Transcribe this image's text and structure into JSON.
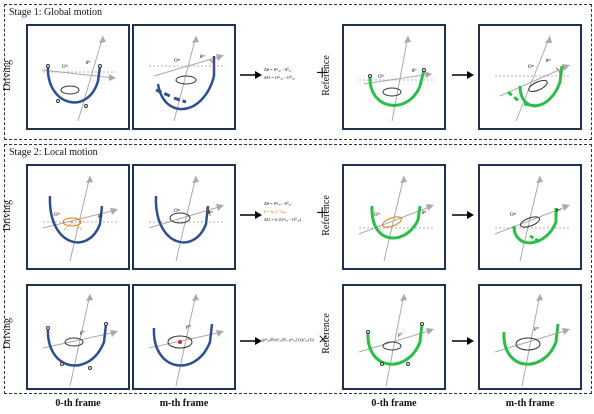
{
  "stage1": {
    "title": "Stage 1: Global motion"
  },
  "stage2": {
    "title": "Stage 2: Local motion"
  },
  "labels": {
    "driving": "Driving",
    "reference": "Reference"
  },
  "formulas": {
    "s1_line1": "Δθ = θᵐ₂ₒ - θ⁰₂ₒ",
    "s1_line2": "ΔO = Oᵐ₂ₒ - O⁰₂ₒ",
    "s2_line1": "Δθ = θᵐₒᵥ - θ⁰ₒᵥ",
    "s2_line2": "b = bᵣₑf / bₚᵣₑ",
    "s2_line3": "ΔO = b·(Oᵐₒᵥ - O⁰ₒᵥ)",
    "s3_matrix": "(pᵐ₀ₒ(0)/p⁰₀ₒ(0) , pᵐ₀ₒ(1)/p⁰₀ₒ(1))"
  },
  "annotations": {
    "theta0": "θ⁰",
    "thetam": "θᵐ",
    "o0": "O⁰",
    "om": "Oᵐ",
    "p0": "p⁰",
    "pm": "pᵐ"
  },
  "footer": {
    "frame0": "0-th frame",
    "framem": "m-th frame",
    "frame0_r": "0-th frame",
    "framem_r": "m-th frame"
  },
  "colors": {
    "blue": "#2f4f8f",
    "green": "#2ebd4a",
    "orange": "#e07818",
    "border": "#1e3350"
  }
}
